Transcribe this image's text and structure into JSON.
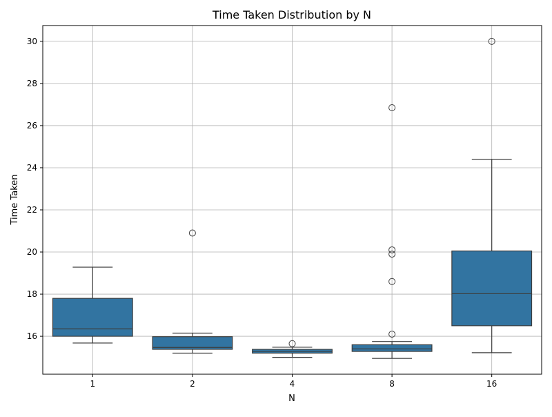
{
  "chart_data": {
    "type": "box",
    "title": "Time Taken Distribution by N",
    "xlabel": "N",
    "ylabel": "Time Taken",
    "categories": [
      "1",
      "2",
      "4",
      "8",
      "16"
    ],
    "ylim": [
      14.2,
      30.75
    ],
    "yticks": [
      16,
      18,
      20,
      22,
      24,
      26,
      28,
      30
    ],
    "grid": true,
    "box_color": "#3274a1",
    "line_color": "#3d3d3d",
    "boxes": [
      {
        "category": "1",
        "whisker_low": 15.68,
        "q1": 16.0,
        "median": 16.35,
        "q3": 17.8,
        "whisker_high": 19.28,
        "outliers": []
      },
      {
        "category": "2",
        "whisker_low": 15.2,
        "q1": 15.38,
        "median": 15.47,
        "q3": 15.98,
        "whisker_high": 16.15,
        "outliers": [
          20.9
        ]
      },
      {
        "category": "4",
        "whisker_low": 15.0,
        "q1": 15.2,
        "median": 15.28,
        "q3": 15.38,
        "whisker_high": 15.48,
        "outliers": [
          15.65
        ]
      },
      {
        "category": "8",
        "whisker_low": 14.95,
        "q1": 15.28,
        "median": 15.4,
        "q3": 15.6,
        "whisker_high": 15.75,
        "outliers": [
          16.1,
          18.6,
          19.9,
          20.1,
          26.85
        ]
      },
      {
        "category": "16",
        "whisker_low": 15.22,
        "q1": 16.5,
        "median": 18.02,
        "q3": 20.05,
        "whisker_high": 24.4,
        "outliers": [
          30.0
        ]
      }
    ]
  }
}
